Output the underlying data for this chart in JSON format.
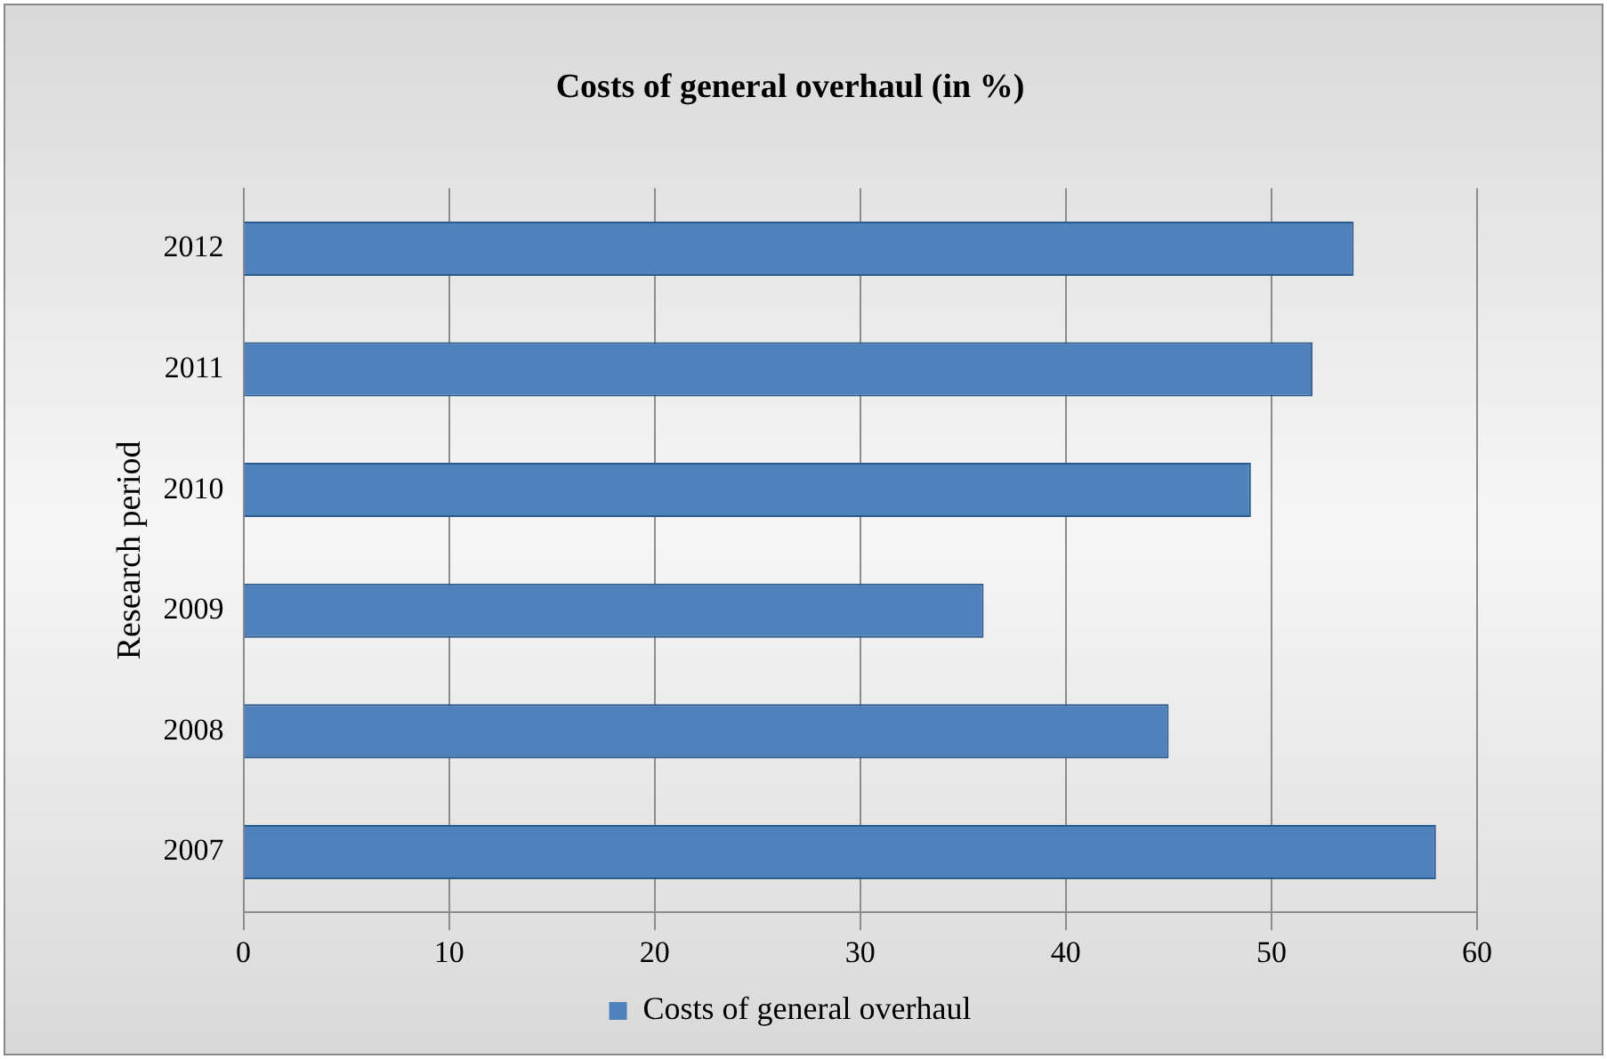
{
  "chart_data": {
    "type": "bar",
    "orientation": "horizontal",
    "title": "Costs of general overhaul (in %)",
    "ylabel": "Research period",
    "categories": [
      "2012",
      "2011",
      "2010",
      "2009",
      "2008",
      "2007"
    ],
    "series": [
      {
        "name": "Costs of general overhaul",
        "color": "#4f81bd",
        "values": [
          54,
          52,
          49,
          36,
          45,
          58
        ]
      }
    ],
    "xlim": [
      0,
      60
    ],
    "xticks": [
      0,
      10,
      20,
      30,
      40,
      50,
      60
    ],
    "grid": "x",
    "legend": "bottom"
  }
}
